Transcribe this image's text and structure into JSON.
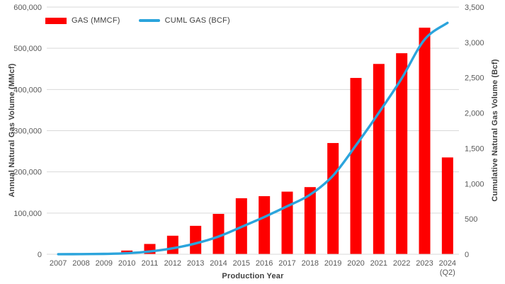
{
  "chart_data": {
    "type": "bar+line combo",
    "title": "",
    "categories": [
      "2007",
      "2008",
      "2009",
      "2010",
      "2011",
      "2012",
      "2013",
      "2014",
      "2015",
      "2016",
      "2017",
      "2018",
      "2019",
      "2020",
      "2021",
      "2022",
      "2023",
      "2024"
    ],
    "category_sublabels": [
      "",
      "",
      "",
      "",
      "",
      "",
      "",
      "",
      "",
      "",
      "",
      "",
      "",
      "",
      "",
      "",
      "",
      "(Q2)"
    ],
    "series": [
      {
        "name": "GAS (MMCF)",
        "type": "bar",
        "axis": "left",
        "color": "#fe0000",
        "values": [
          500,
          1500,
          3000,
          9000,
          25000,
          45000,
          69000,
          98000,
          136000,
          141000,
          152000,
          163000,
          270000,
          428000,
          462000,
          488000,
          550000,
          235000
        ]
      },
      {
        "name": "CUML GAS (BCF)",
        "type": "line",
        "axis": "right",
        "color": "#2ba4dc",
        "values": [
          1,
          2,
          5,
          14,
          39,
          84,
          153,
          251,
          387,
          528,
          680,
          843,
          1113,
          1541,
          2003,
          2491,
          3041,
          3276
        ]
      }
    ],
    "x_axis": {
      "title": "Production Year"
    },
    "left_axis": {
      "title": "Annual Natural Gas Volume (MMcf)",
      "min": 0,
      "max": 600000,
      "tick_step": 100000,
      "tick_labels": [
        "0",
        "100,000",
        "200,000",
        "300,000",
        "400,000",
        "500,000",
        "600,000"
      ]
    },
    "right_axis": {
      "title": "Cumulative Natural Gas Volume (Bcf)",
      "min": 0,
      "max": 3500,
      "tick_step": 500,
      "tick_labels": [
        "0",
        "500",
        "1,000",
        "1,500",
        "2,000",
        "2,500",
        "3,000",
        "3,500"
      ]
    },
    "grid": "horizontal-only",
    "legend_position": "top-left",
    "colors": {
      "gridline": "#d9d9d9",
      "axis_line": "#d9d9d9",
      "tick_text": "#595959",
      "title_text": "#404040",
      "background": "#ffffff"
    }
  }
}
